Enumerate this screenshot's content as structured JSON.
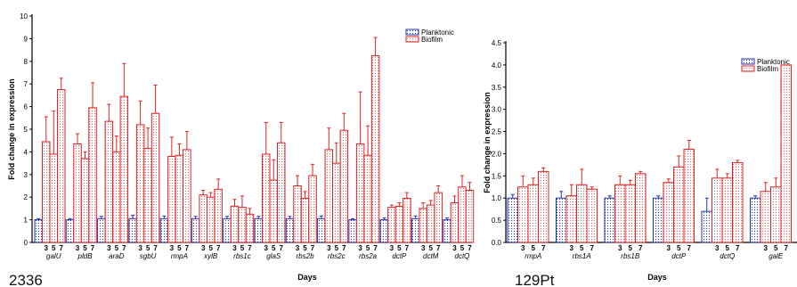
{
  "colors": {
    "planktonic": "#2233aa",
    "biofilm": "#dd2222",
    "hatch_bg": "#ffffff"
  },
  "chart_data": [
    {
      "type": "bar",
      "panel_label": "2336",
      "xlabel": "Days",
      "ylabel": "Fold change in expression",
      "ylim": [
        0,
        10
      ],
      "yticks": [
        0,
        1,
        2,
        3,
        4,
        5,
        6,
        7,
        8,
        9,
        10
      ],
      "legend": {
        "position": "top-right",
        "entries": [
          "Planktonic",
          "Biofilm"
        ]
      },
      "day_labels": [
        "3",
        "5",
        "7"
      ],
      "categories": [
        "galU",
        "pldB",
        "araD",
        "sgbU",
        "rmpA",
        "xylB",
        "rbs1c",
        "glaS",
        "rbs2b",
        "rbs2c",
        "rbs2a",
        "dctP",
        "dctM",
        "dctQ"
      ],
      "series": [
        {
          "name": "Planktonic",
          "values": [
            1.0,
            1.0,
            1.05,
            1.05,
            1.05,
            1.05,
            1.05,
            1.05,
            1.05,
            1.05,
            1.0,
            1.0,
            1.05,
            1.0
          ]
        },
        {
          "name": "Biofilm",
          "days": [
            "3",
            "5",
            "7"
          ],
          "values": [
            [
              4.45,
              3.9,
              6.75
            ],
            [
              4.35,
              3.7,
              5.95
            ],
            [
              5.35,
              4.0,
              6.45
            ],
            [
              5.2,
              4.15,
              5.7
            ],
            [
              3.8,
              3.85,
              4.1
            ],
            [
              2.1,
              2.0,
              2.35
            ],
            [
              1.6,
              1.55,
              1.25
            ],
            [
              3.9,
              2.75,
              4.4
            ],
            [
              2.5,
              1.95,
              2.95
            ],
            [
              4.1,
              3.5,
              4.95
            ],
            [
              4.35,
              3.85,
              8.25
            ],
            [
              1.55,
              1.6,
              1.95
            ],
            [
              1.5,
              1.65,
              2.2
            ],
            [
              1.75,
              2.45,
              2.3
            ]
          ]
        }
      ],
      "errors": {
        "planktonic": [
          0.05,
          0.05,
          0.1,
          0.15,
          0.12,
          0.1,
          0.1,
          0.1,
          0.1,
          0.12,
          0.05,
          0.08,
          0.12,
          0.08
        ],
        "biofilm": [
          [
            1.1,
            1.9,
            0.5
          ],
          [
            0.45,
            0.3,
            1.1
          ],
          [
            0.75,
            0.7,
            1.45
          ],
          [
            1.05,
            0.9,
            1.25
          ],
          [
            0.85,
            0.5,
            0.8
          ],
          [
            0.2,
            0.2,
            0.45
          ],
          [
            0.3,
            0.5,
            0.25
          ],
          [
            1.4,
            0.9,
            0.9
          ],
          [
            0.45,
            0.3,
            0.5
          ],
          [
            0.95,
            0.9,
            0.75
          ],
          [
            2.3,
            1.3,
            0.8
          ],
          [
            0.1,
            0.15,
            0.25
          ],
          [
            0.25,
            0.2,
            0.3
          ],
          [
            0.3,
            0.5,
            0.35
          ]
        ]
      }
    },
    {
      "type": "bar",
      "panel_label": "129Pt",
      "xlabel": "Days",
      "ylabel": "Fold change in expression",
      "ylim": [
        0,
        4.5
      ],
      "yticks": [
        "0.0",
        "0.5",
        "1.0",
        "1.5",
        "2.0",
        "2.5",
        "3.0",
        "3.5",
        "4.0",
        "4.5"
      ],
      "legend": {
        "position": "top-right",
        "entries": [
          "Planktonic",
          "Biofilm"
        ]
      },
      "day_labels": [
        "3",
        "5",
        "7"
      ],
      "categories": [
        "rmpA",
        "rbs1A",
        "rbs1B",
        "dctP",
        "dctQ",
        "galE"
      ],
      "series": [
        {
          "name": "Planktonic",
          "values": [
            1.0,
            1.0,
            1.0,
            1.0,
            0.7,
            1.0
          ]
        },
        {
          "name": "Biofilm",
          "days": [
            "3",
            "5",
            "7"
          ],
          "values": [
            [
              1.25,
              1.3,
              1.6
            ],
            [
              1.05,
              1.3,
              1.2
            ],
            [
              1.3,
              1.3,
              1.55
            ],
            [
              1.35,
              1.7,
              2.1
            ],
            [
              1.45,
              1.45,
              1.8
            ],
            [
              1.15,
              1.25,
              4.0
            ]
          ]
        }
      ],
      "errors": {
        "planktonic": [
          0.08,
          0.15,
          0.05,
          0.05,
          0.3,
          0.05
        ],
        "biofilm": [
          [
            0.25,
            0.15,
            0.08
          ],
          [
            0.25,
            0.35,
            0.05
          ],
          [
            0.2,
            0.1,
            0.05
          ],
          [
            0.08,
            0.25,
            0.2
          ],
          [
            0.2,
            0.1,
            0.05
          ],
          [
            0.2,
            0.2,
            0.0
          ]
        ]
      }
    }
  ]
}
